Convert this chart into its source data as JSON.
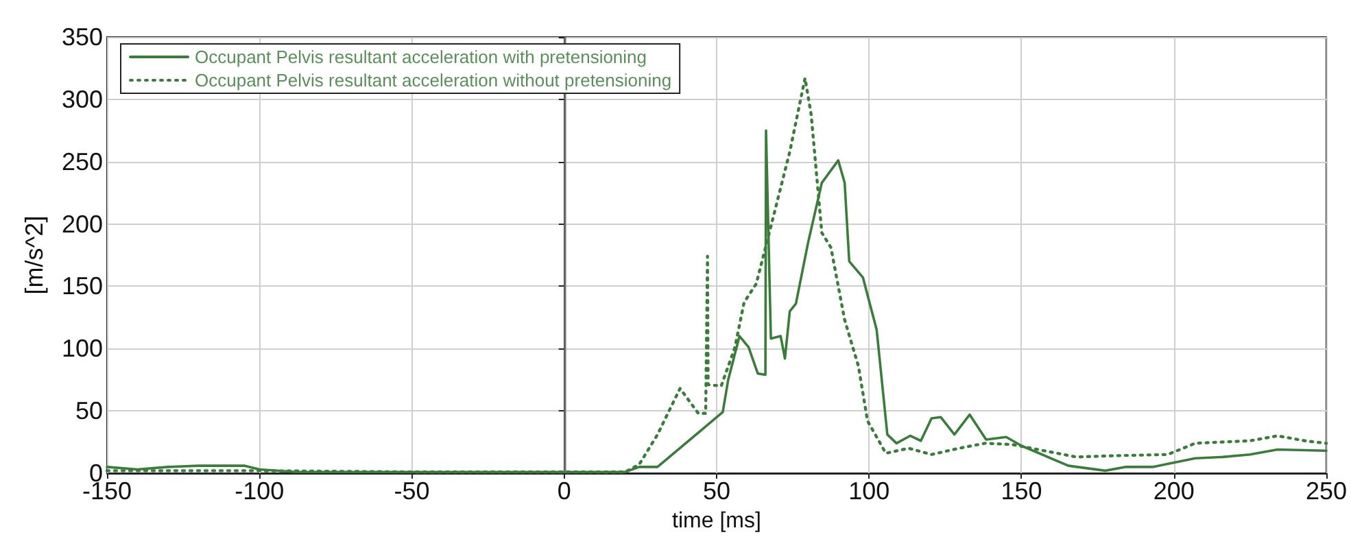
{
  "chart_data": {
    "type": "line",
    "xlabel": "time [ms]",
    "ylabel": "[m/s^2]",
    "xlim": [
      -150,
      250
    ],
    "xticks": [
      -150,
      -100,
      -50,
      0,
      50,
      100,
      150,
      200,
      250
    ],
    "ylim": [
      0,
      350
    ],
    "yticks": [
      0,
      50,
      100,
      150,
      200,
      250,
      300,
      350
    ],
    "grid": true,
    "legend": "top left",
    "marker": "none",
    "ref_lines": [
      {
        "axis": "x",
        "value": 0,
        "color": "#707070"
      }
    ],
    "series": [
      {
        "name": "Occupant Pelvis resultant acceleration with pretensioning",
        "color": "#3a7d3a",
        "line_style": "solid",
        "x": [
          -150,
          -140,
          -130,
          -120,
          -105,
          -100,
          -88,
          -60,
          -30,
          0,
          20,
          24.6,
          30.6,
          52,
          53.8,
          57.5,
          60.5,
          63.5,
          66,
          66.2,
          67.8,
          71,
          72.4,
          74,
          76,
          80,
          84.5,
          89.9,
          92,
          93.5,
          98,
          102.5,
          106,
          109,
          113.5,
          117,
          120.5,
          123.5,
          128,
          133,
          138.4,
          145,
          150,
          165.4,
          177.5,
          184,
          193,
          199,
          207,
          216,
          225,
          234,
          250
        ],
        "values": [
          5,
          3,
          5,
          6,
          6,
          3,
          1,
          1,
          1,
          1,
          1,
          5,
          5,
          49,
          75,
          110,
          101,
          80,
          79,
          275,
          108,
          110,
          92,
          130,
          136,
          185,
          233,
          251,
          233,
          170,
          157,
          115,
          31,
          24,
          30,
          26,
          44,
          45,
          31,
          47,
          27,
          29,
          22,
          6,
          2,
          5,
          5,
          8,
          12,
          13,
          15,
          19,
          18
        ]
      },
      {
        "name": "Occupant Pelvis resultant acceleration without pretensioning",
        "color": "#3a7d3a",
        "line_style": "dotted",
        "x": [
          -150,
          -100,
          -50,
          0,
          20,
          24.6,
          30.6,
          38,
          44,
          46.4,
          47,
          47.2,
          51.5,
          56,
          59,
          63,
          68,
          74,
          79,
          81,
          84.5,
          87.5,
          92,
          96.5,
          99.5,
          105.5,
          113,
          120.5,
          129.5,
          138,
          147,
          157.5,
          168,
          180,
          198,
          207,
          225,
          234,
          243,
          250
        ],
        "values": [
          2,
          2,
          1,
          1,
          1,
          7,
          31,
          68,
          48,
          48,
          174,
          71,
          70,
          101,
          137,
          152,
          200,
          258,
          317,
          288,
          193,
          181,
          123,
          86,
          42,
          16,
          20,
          15,
          20,
          24,
          23,
          18,
          13,
          14,
          15,
          24,
          26,
          30,
          26,
          24
        ]
      }
    ]
  }
}
